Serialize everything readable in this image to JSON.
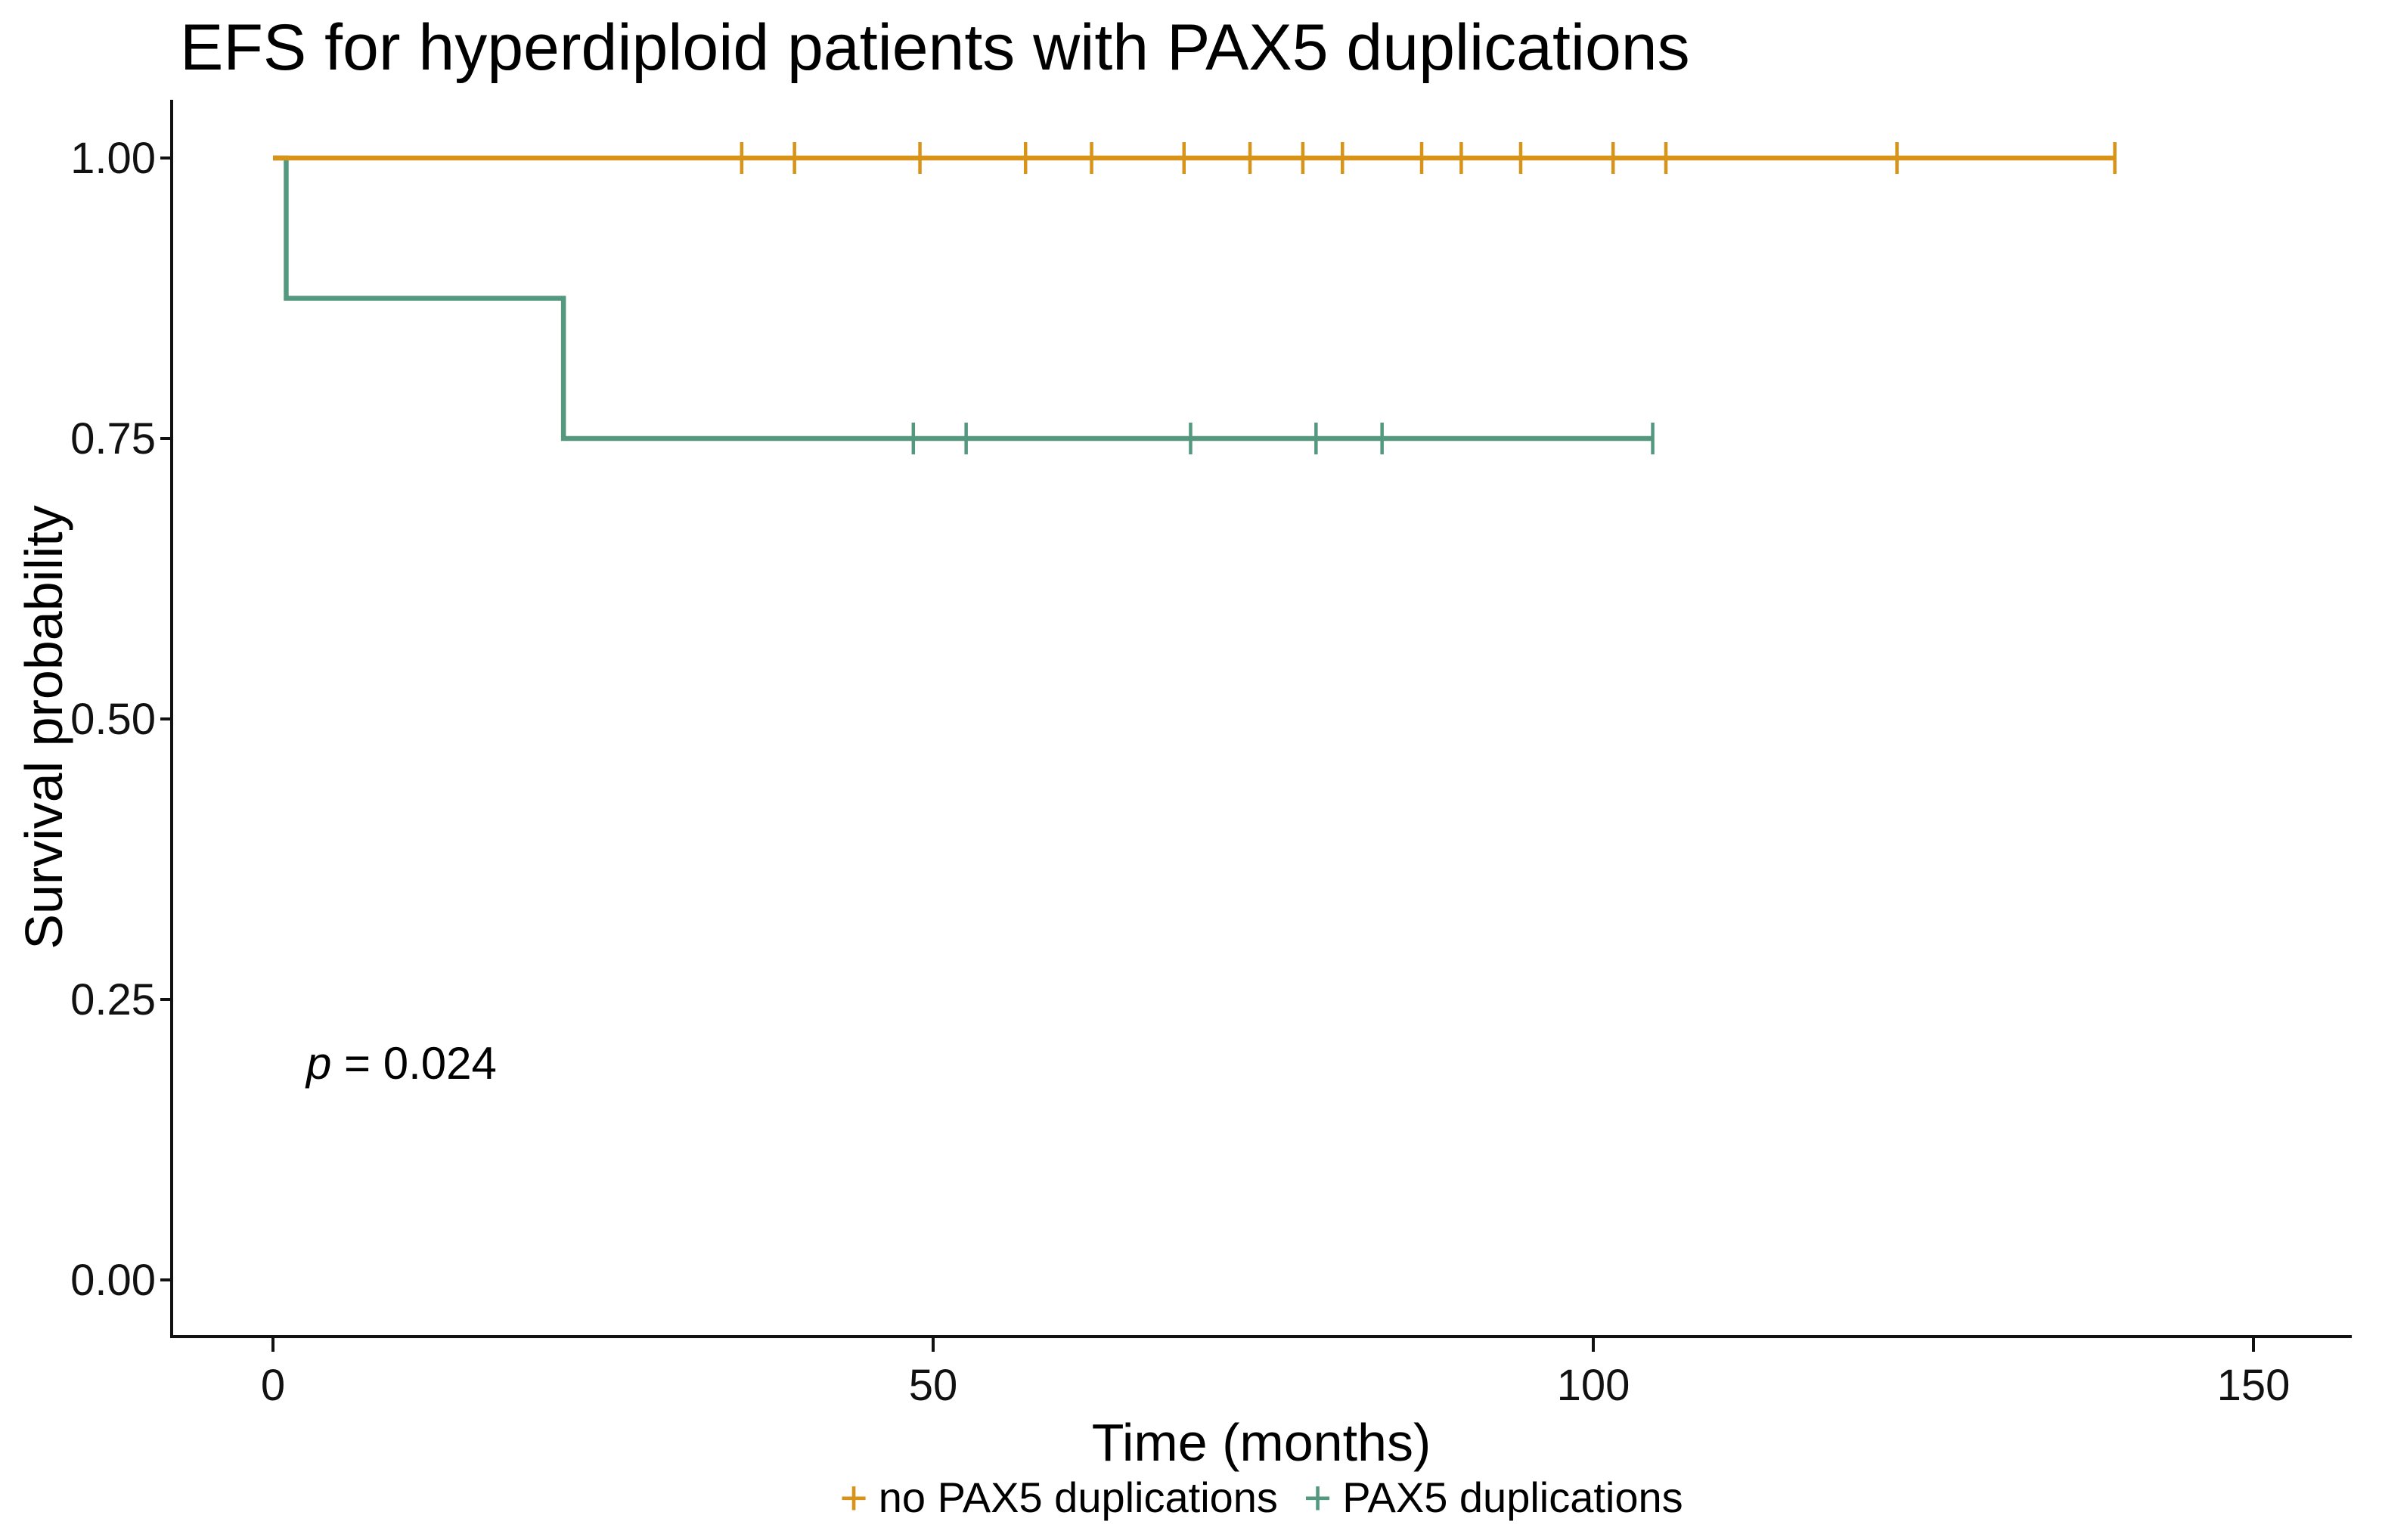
{
  "figure": {
    "title": "EFS for hyperdiploid patients with PAX5 duplications",
    "x_axis_label": "Time (months)",
    "y_axis_label": "Survival probability",
    "p_value": {
      "symbol": "p",
      "rest": " = 0.024"
    }
  },
  "legend": {
    "items": [
      {
        "marker": "+",
        "label": "no PAX5 duplications",
        "color": "#D89418"
      },
      {
        "marker": "+",
        "label": "PAX5 duplications",
        "color": "#54997F"
      }
    ]
  },
  "chart_data": {
    "type": "line",
    "subtype": "kaplan_meier_step",
    "title": "EFS for hyperdiploid patients with PAX5 duplications",
    "xlabel": "Time (months)",
    "ylabel": "Survival probability",
    "xlim": [
      -7.5,
      157.5
    ],
    "ylim": [
      -0.05,
      1.05
    ],
    "grid": false,
    "legend_position": "bottom",
    "x_ticks": [
      0,
      50,
      100,
      150
    ],
    "x_tick_labels": [
      "0",
      "50",
      "100",
      "150"
    ],
    "y_ticks": [
      1.0,
      0.75,
      0.5,
      0.25,
      0.0
    ],
    "y_tick_labels": [
      "1.00",
      "0.75",
      "0.50",
      "0.25",
      "0.00"
    ],
    "annotations": [
      {
        "text": "p = 0.024",
        "x": 10.5,
        "y": 0.195
      }
    ],
    "series": [
      {
        "name": "no PAX5 duplications",
        "color": "#D89418",
        "steps": [
          [
            0,
            1.0
          ],
          [
            139.5,
            1.0
          ]
        ],
        "censors": [
          [
            35.5,
            1.0
          ],
          [
            39.5,
            1.0
          ],
          [
            49,
            1.0
          ],
          [
            57,
            1.0
          ],
          [
            62,
            1.0
          ],
          [
            69,
            1.0
          ],
          [
            74,
            1.0
          ],
          [
            78,
            1.0
          ],
          [
            81,
            1.0
          ],
          [
            87,
            1.0
          ],
          [
            90,
            1.0
          ],
          [
            94.5,
            1.0
          ],
          [
            101.5,
            1.0
          ],
          [
            105.5,
            1.0
          ],
          [
            123,
            1.0
          ],
          [
            139.5,
            1.0
          ]
        ]
      },
      {
        "name": "PAX5 duplications",
        "color": "#54997F",
        "steps": [
          [
            0,
            1.0
          ],
          [
            1,
            1.0
          ],
          [
            1,
            0.875
          ],
          [
            22,
            0.875
          ],
          [
            22,
            0.75
          ],
          [
            104.5,
            0.75
          ]
        ],
        "censors": [
          [
            48.5,
            0.75
          ],
          [
            52.5,
            0.75
          ],
          [
            69.5,
            0.75
          ],
          [
            79,
            0.75
          ],
          [
            84,
            0.75
          ],
          [
            104.5,
            0.75
          ]
        ]
      }
    ]
  }
}
